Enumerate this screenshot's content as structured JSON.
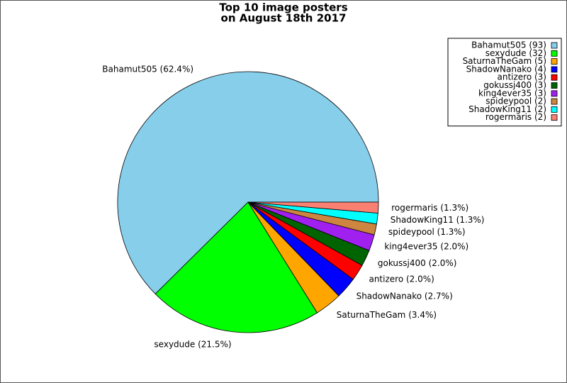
{
  "chart_data": {
    "type": "pie",
    "title": [
      "Top 10 image posters",
      "on August 18th 2017"
    ],
    "categories": [
      "Bahamut505",
      "sexydude",
      "SaturnaTheGam",
      "ShadowNanako",
      "antizero",
      "gokussj400",
      "king4ever35",
      "spideypool",
      "ShadowKing11",
      "rogermaris"
    ],
    "values": [
      93,
      32,
      5,
      4,
      3,
      3,
      3,
      2,
      2,
      2
    ],
    "slice_labels": [
      "Bahamut505 (62.4%)",
      "sexydude (21.5%)",
      "SaturnaTheGam (3.4%)",
      "ShadowNanako (2.7%)",
      "antizero (2.0%)",
      "gokussj400 (2.0%)",
      "king4ever35 (2.0%)",
      "spideypool (1.3%)",
      "ShadowKing11 (1.3%)",
      "rogermaris (1.3%)"
    ],
    "legend_labels": [
      "Bahamut505 (93)",
      "sexydude (32)",
      "SaturnaTheGam (5)",
      "ShadowNanako (4)",
      "antizero (3)",
      "gokussj400 (3)",
      "king4ever35 (3)",
      "spideypool (2)",
      "ShadowKing11 (2)",
      "rogermaris (2)"
    ],
    "colors": [
      "#87ceeb",
      "#00ff00",
      "#ffa500",
      "#0000ff",
      "#ff0000",
      "#006400",
      "#a020f0",
      "#cd853f",
      "#00ffff",
      "#fa8072"
    ],
    "legend_position": "upper right"
  }
}
